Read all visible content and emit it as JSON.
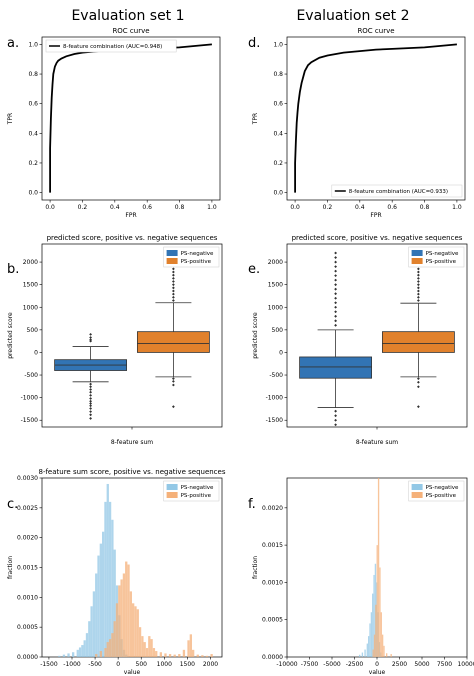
{
  "figure": {
    "column_titles": [
      "Evaluation set 1",
      "Evaluation set 2"
    ],
    "panel_letters": [
      "a.",
      "b.",
      "c.",
      "d.",
      "e.",
      "f."
    ]
  },
  "chart_data": [
    {
      "id": "a",
      "type": "line",
      "title": "ROC curve",
      "xlabel": "FPR",
      "ylabel": "TPR",
      "xlim": [
        0,
        1
      ],
      "ylim": [
        0,
        1
      ],
      "xticks": [
        0.0,
        0.2,
        0.4,
        0.6,
        0.8,
        1.0
      ],
      "yticks": [
        0.0,
        0.2,
        0.4,
        0.6,
        0.8,
        1.0
      ],
      "legend_position": "top-left",
      "series": [
        {
          "name": "8-feature combination (AUC=0.948)",
          "color": "#000000",
          "x": [
            0,
            0,
            0.005,
            0.01,
            0.015,
            0.02,
            0.03,
            0.04,
            0.05,
            0.07,
            0.1,
            0.15,
            0.2,
            0.3,
            0.4,
            0.5,
            0.6,
            0.7,
            0.8,
            0.9,
            1.0
          ],
          "y": [
            0,
            0.3,
            0.5,
            0.64,
            0.73,
            0.8,
            0.85,
            0.875,
            0.89,
            0.905,
            0.92,
            0.935,
            0.945,
            0.955,
            0.96,
            0.965,
            0.97,
            0.975,
            0.98,
            0.99,
            1.0
          ]
        }
      ]
    },
    {
      "id": "b",
      "type": "box",
      "title": "predicted score, positive vs. negative sequences",
      "xlabel": "8-feature sum",
      "ylabel": "predicted score",
      "ylim": [
        -1650,
        2400
      ],
      "yticks": [
        -1500,
        -1000,
        -500,
        0,
        500,
        1000,
        1500,
        2000
      ],
      "legend_position": "top-right",
      "series": [
        {
          "name": "PS-negative",
          "color": "#3274b4",
          "q1": -400,
          "median": -280,
          "q3": -160,
          "whislo": -650,
          "whishi": 130,
          "outliers": [
            400,
            330,
            280,
            250,
            -700,
            -760,
            -820,
            -880,
            -950,
            -1020,
            -1080,
            -1130,
            -1180,
            -1240,
            -1310,
            -1380,
            -1460
          ]
        },
        {
          "name": "PS-positive",
          "color": "#e1812c",
          "q1": 0,
          "median": 200,
          "q3": 460,
          "whislo": -540,
          "whishi": 1100,
          "outliers": [
            1150,
            1220,
            1290,
            1360,
            1430,
            1500,
            1570,
            1640,
            1710,
            1780,
            1850,
            1920,
            1990,
            2060,
            2130,
            2200,
            2280,
            -580,
            -640,
            -720,
            -1200
          ]
        }
      ]
    },
    {
      "id": "c",
      "type": "histogram",
      "title": "8-feature sum score, positive vs. negative sequences",
      "xlabel": "value",
      "ylabel": "fraction",
      "xlim": [
        -1650,
        2250
      ],
      "ylim": [
        0,
        0.003
      ],
      "xticks": [
        -1500,
        -1000,
        -500,
        0,
        500,
        1000,
        1500,
        2000
      ],
      "yticks": [
        0.0,
        0.0005,
        0.001,
        0.0015,
        0.002,
        0.0025,
        0.003
      ],
      "ytick_labels": [
        "0.0000",
        "0.0005",
        "0.0010",
        "0.0015",
        "0.0020",
        "0.0025",
        "0.0030"
      ],
      "legend_position": "top-right",
      "bin_width": 50,
      "series": [
        {
          "name": "PS-negative",
          "color": "#93c8e6",
          "bins": [
            [
              -1300,
              2e-05
            ],
            [
              -1200,
              4e-05
            ],
            [
              -1100,
              6e-05
            ],
            [
              -1000,
              8e-05
            ],
            [
              -900,
              0.00012
            ],
            [
              -850,
              0.00016
            ],
            [
              -800,
              0.0002
            ],
            [
              -750,
              0.00028
            ],
            [
              -700,
              0.0004
            ],
            [
              -650,
              0.0006
            ],
            [
              -600,
              0.00085
            ],
            [
              -550,
              0.0011
            ],
            [
              -500,
              0.0014
            ],
            [
              -450,
              0.0017
            ],
            [
              -400,
              0.0019
            ],
            [
              -350,
              0.0021
            ],
            [
              -300,
              0.0026
            ],
            [
              -250,
              0.0029
            ],
            [
              -200,
              0.0026
            ],
            [
              -150,
              0.0023
            ],
            [
              -100,
              0.0018
            ],
            [
              -50,
              0.0012
            ],
            [
              0,
              0.0007
            ],
            [
              50,
              0.0003
            ],
            [
              100,
              0.00012
            ],
            [
              150,
              4e-05
            ]
          ]
        },
        {
          "name": "PS-positive",
          "color": "#f5b17a",
          "bins": [
            [
              -500,
              5e-05
            ],
            [
              -400,
              0.0001
            ],
            [
              -300,
              0.00015
            ],
            [
              -250,
              0.00025
            ],
            [
              -200,
              0.0003
            ],
            [
              -150,
              0.0004
            ],
            [
              -100,
              0.0006
            ],
            [
              -50,
              0.0009
            ],
            [
              0,
              0.0012
            ],
            [
              50,
              0.0013
            ],
            [
              100,
              0.0014
            ],
            [
              150,
              0.0016
            ],
            [
              200,
              0.00155
            ],
            [
              250,
              0.0011
            ],
            [
              300,
              0.0009
            ],
            [
              350,
              0.00085
            ],
            [
              400,
              0.0008
            ],
            [
              450,
              0.0005
            ],
            [
              500,
              0.00035
            ],
            [
              550,
              0.00025
            ],
            [
              600,
              0.00015
            ],
            [
              650,
              0.00035
            ],
            [
              700,
              0.0003
            ],
            [
              750,
              0.00015
            ],
            [
              800,
              0.0001
            ],
            [
              900,
              8e-05
            ],
            [
              1000,
              6e-05
            ],
            [
              1100,
              5e-05
            ],
            [
              1200,
              4e-05
            ],
            [
              1300,
              5e-05
            ],
            [
              1400,
              0.00012
            ],
            [
              1500,
              0.00028
            ],
            [
              1550,
              0.00038
            ],
            [
              1600,
              0.00012
            ],
            [
              1700,
              4e-05
            ],
            [
              1800,
              3e-05
            ],
            [
              1900,
              2e-05
            ],
            [
              2000,
              5e-05
            ]
          ]
        }
      ]
    },
    {
      "id": "d",
      "type": "line",
      "title": "ROC curve",
      "xlabel": "FPR",
      "ylabel": "TPR",
      "xlim": [
        0,
        1
      ],
      "ylim": [
        0,
        1
      ],
      "xticks": [
        0.0,
        0.2,
        0.4,
        0.6,
        0.8,
        1.0
      ],
      "yticks": [
        0.0,
        0.2,
        0.4,
        0.6,
        0.8,
        1.0
      ],
      "legend_position": "bottom-right",
      "series": [
        {
          "name": "8-feature combination (AUC=0.933)",
          "color": "#000000",
          "x": [
            0,
            0,
            0.005,
            0.01,
            0.015,
            0.02,
            0.03,
            0.04,
            0.05,
            0.06,
            0.08,
            0.1,
            0.15,
            0.2,
            0.3,
            0.4,
            0.5,
            0.6,
            0.7,
            0.8,
            0.9,
            1.0
          ],
          "y": [
            0,
            0.2,
            0.35,
            0.47,
            0.54,
            0.6,
            0.68,
            0.74,
            0.78,
            0.82,
            0.86,
            0.88,
            0.91,
            0.925,
            0.945,
            0.955,
            0.965,
            0.97,
            0.975,
            0.98,
            0.99,
            1.0
          ]
        }
      ]
    },
    {
      "id": "e",
      "type": "box",
      "title": "predicted score, positive vs. negative sequences",
      "xlabel": "8-feature sum",
      "ylabel": "predicted score",
      "ylim": [
        -1650,
        2400
      ],
      "yticks": [
        -1500,
        -1000,
        -500,
        0,
        500,
        1000,
        1500,
        2000
      ],
      "legend_position": "top-right",
      "series": [
        {
          "name": "PS-negative",
          "color": "#3274b4",
          "q1": -570,
          "median": -320,
          "q3": -100,
          "whislo": -1220,
          "whishi": 500,
          "outliers": [
            600,
            700,
            800,
            900,
            1000,
            1100,
            1200,
            1300,
            1400,
            1500,
            1600,
            1700,
            1800,
            1900,
            2000,
            2100,
            2200,
            -1300,
            -1400,
            -1500,
            -1600
          ]
        },
        {
          "name": "PS-positive",
          "color": "#e1812c",
          "q1": 0,
          "median": 200,
          "q3": 460,
          "whislo": -540,
          "whishi": 1090,
          "outliers": [
            1150,
            1220,
            1290,
            1360,
            1430,
            1500,
            1570,
            1640,
            1710,
            1780,
            1850,
            1920,
            1990,
            2060,
            2130,
            2200,
            2280,
            -580,
            -660,
            -760,
            -1200
          ]
        }
      ]
    },
    {
      "id": "f",
      "type": "histogram",
      "xlabel": "value",
      "ylabel": "fraction",
      "xlim": [
        -10000,
        10000
      ],
      "ylim": [
        0,
        0.0024
      ],
      "xticks": [
        -10000,
        -7500,
        -5000,
        -2500,
        0,
        2500,
        5000,
        7500,
        10000
      ],
      "yticks": [
        0.0,
        0.0005,
        0.001,
        0.0015,
        0.002
      ],
      "ytick_labels": [
        "0.0000",
        "0.0005",
        "0.0010",
        "0.0015",
        "0.0020"
      ],
      "legend_position": "top-right",
      "bin_width": 150,
      "series": [
        {
          "name": "PS-negative",
          "color": "#93c8e6",
          "bins": [
            [
              -2000,
              3e-05
            ],
            [
              -1700,
              6e-05
            ],
            [
              -1400,
              0.0001
            ],
            [
              -1150,
              0.00018
            ],
            [
              -1000,
              0.00028
            ],
            [
              -850,
              0.00045
            ],
            [
              -700,
              0.0006
            ],
            [
              -550,
              0.00085
            ],
            [
              -400,
              0.0011
            ],
            [
              -250,
              0.00125
            ],
            [
              -100,
              0.001
            ],
            [
              50,
              0.0006
            ],
            [
              200,
              0.0002
            ],
            [
              350,
              6e-05
            ]
          ]
        },
        {
          "name": "PS-positive",
          "color": "#f5b17a",
          "bins": [
            [
              -500,
              0.0001
            ],
            [
              -350,
              0.0003
            ],
            [
              -200,
              0.0007
            ],
            [
              -50,
              0.0015
            ],
            [
              100,
              0.0024
            ],
            [
              250,
              0.0012
            ],
            [
              400,
              0.0006
            ],
            [
              550,
              0.0003
            ],
            [
              700,
              0.00015
            ],
            [
              1000,
              5e-05
            ],
            [
              1500,
              4e-05
            ]
          ]
        }
      ]
    }
  ]
}
